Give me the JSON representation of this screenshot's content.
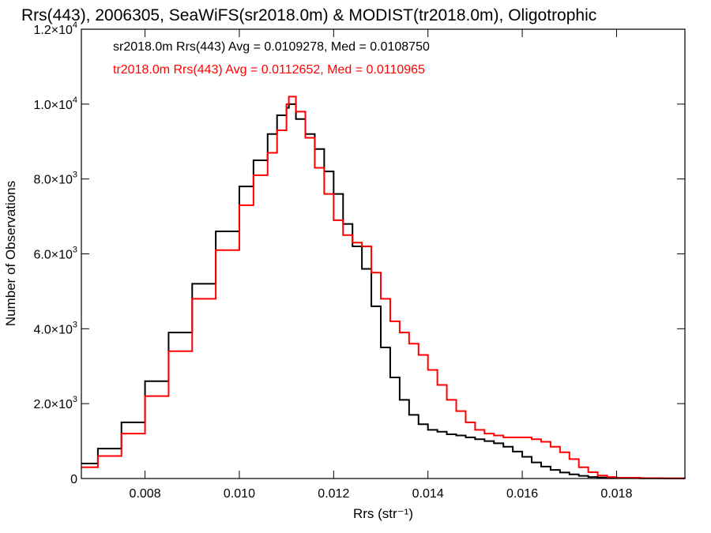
{
  "chart_data": {
    "type": "line",
    "step": true,
    "title": "Rrs(443), 2006305, SeaWiFS(sr2018.0m) & MODIST(tr2018.0m), Oligotrophic",
    "xlabel": "Rrs (str⁻¹)",
    "ylabel": "Number of Observations",
    "xlim": [
      0.00665,
      0.01945
    ],
    "ylim": [
      0,
      12000
    ],
    "x_ticks": [
      0.008,
      0.01,
      0.012,
      0.014,
      0.016,
      0.018
    ],
    "x_tick_labels": [
      "0.008",
      "0.010",
      "0.012",
      "0.014",
      "0.016",
      "0.018"
    ],
    "y_ticks": [
      0,
      2000,
      4000,
      6000,
      8000,
      10000,
      12000
    ],
    "y_tick_labels": [
      {
        "mantissa": "0",
        "exp": ""
      },
      {
        "mantissa": "2.0×10",
        "exp": "3"
      },
      {
        "mantissa": "4.0×10",
        "exp": "3"
      },
      {
        "mantissa": "6.0×10",
        "exp": "3"
      },
      {
        "mantissa": "8.0×10",
        "exp": "3"
      },
      {
        "mantissa": "1.0×10",
        "exp": "4"
      },
      {
        "mantissa": "1.2×10",
        "exp": "4"
      }
    ],
    "grid": false,
    "legend_position": "top-left",
    "annotations": [
      "sr2018.0m Rrs(443) Avg = 0.0109278, Med = 0.0108750",
      "tr2018.0m Rrs(443) Avg = 0.0112652, Med = 0.0110965"
    ],
    "series": [
      {
        "color": "#000000",
        "x": [
          0.00665,
          0.007,
          0.0075,
          0.008,
          0.0085,
          0.009,
          0.0095,
          0.01,
          0.0103,
          0.0106,
          0.0108,
          0.011,
          0.01105,
          0.0112,
          0.0114,
          0.0116,
          0.0118,
          0.012,
          0.0122,
          0.0124,
          0.0126,
          0.0128,
          0.013,
          0.0132,
          0.0134,
          0.0136,
          0.0138,
          0.014,
          0.0142,
          0.0144,
          0.0146,
          0.0148,
          0.015,
          0.0152,
          0.0154,
          0.0156,
          0.0158,
          0.016,
          0.0162,
          0.0164,
          0.0166,
          0.0168,
          0.017,
          0.0172,
          0.0174,
          0.0176,
          0.0178,
          0.018,
          0.0185,
          0.019,
          0.01945
        ],
        "y": [
          400,
          800,
          1500,
          2600,
          3900,
          5200,
          6600,
          7800,
          8500,
          9200,
          9700,
          9900,
          10000,
          9600,
          9200,
          8800,
          8200,
          7600,
          6800,
          6200,
          5600,
          4600,
          3500,
          2700,
          2100,
          1700,
          1450,
          1300,
          1250,
          1180,
          1150,
          1100,
          1050,
          1000,
          940,
          850,
          720,
          580,
          430,
          320,
          230,
          160,
          110,
          70,
          40,
          25,
          15,
          10,
          5,
          2,
          0
        ]
      },
      {
        "color": "#ff0000",
        "x": [
          0.00665,
          0.007,
          0.0075,
          0.008,
          0.0085,
          0.009,
          0.0095,
          0.01,
          0.0103,
          0.0106,
          0.0108,
          0.011,
          0.01105,
          0.0112,
          0.0114,
          0.0116,
          0.0118,
          0.012,
          0.0122,
          0.0124,
          0.0126,
          0.0128,
          0.013,
          0.0132,
          0.0134,
          0.0136,
          0.0138,
          0.014,
          0.0142,
          0.0144,
          0.0146,
          0.0148,
          0.015,
          0.0152,
          0.0154,
          0.0156,
          0.0158,
          0.016,
          0.0162,
          0.0164,
          0.0166,
          0.0168,
          0.017,
          0.0172,
          0.0174,
          0.0176,
          0.0178,
          0.018,
          0.0185,
          0.019,
          0.01945
        ],
        "y": [
          300,
          600,
          1200,
          2200,
          3400,
          4800,
          6100,
          7300,
          8100,
          8700,
          9300,
          10000,
          10200,
          9800,
          9100,
          8300,
          7600,
          6900,
          6500,
          6300,
          6200,
          5500,
          4800,
          4200,
          3900,
          3600,
          3300,
          2900,
          2500,
          2100,
          1800,
          1500,
          1300,
          1200,
          1150,
          1100,
          1100,
          1100,
          1050,
          980,
          850,
          700,
          520,
          300,
          170,
          80,
          40,
          20,
          10,
          5,
          0
        ]
      }
    ]
  }
}
